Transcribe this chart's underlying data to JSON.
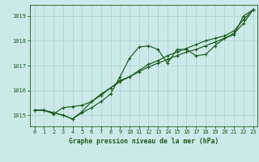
{
  "title": "Graphe pression niveau de la mer (hPa)",
  "bg_color": "#cce9e9",
  "grid_color": "#aad4d4",
  "line_color": "#1a5c1a",
  "marker_color": "#1a5c1a",
  "xlim": [
    -0.5,
    23.5
  ],
  "ylim": [
    1014.55,
    1019.45
  ],
  "yticks": [
    1015,
    1016,
    1017,
    1018,
    1019
  ],
  "xticks": [
    0,
    1,
    2,
    3,
    4,
    5,
    6,
    7,
    8,
    9,
    10,
    11,
    12,
    13,
    14,
    15,
    16,
    17,
    18,
    19,
    20,
    21,
    22,
    23
  ],
  "series1_x": [
    0,
    1,
    2,
    3,
    4,
    5,
    6,
    7,
    8,
    9,
    10,
    11,
    12,
    13,
    14,
    15,
    16,
    17,
    18,
    19,
    20,
    21,
    22,
    23
  ],
  "series1": [
    1015.2,
    1015.2,
    1015.1,
    1015.0,
    1014.85,
    1015.1,
    1015.3,
    1015.55,
    1015.85,
    1016.55,
    1017.3,
    1017.75,
    1017.8,
    1017.65,
    1017.1,
    1017.65,
    1017.65,
    1017.4,
    1017.45,
    1017.8,
    1018.1,
    1018.25,
    1019.0,
    1019.25
  ],
  "series2_x": [
    0,
    1,
    2,
    3,
    4,
    5,
    6,
    7,
    8,
    9,
    10,
    11,
    12,
    13,
    14,
    15,
    16,
    17,
    18,
    19,
    20,
    21,
    22,
    23
  ],
  "series2": [
    1015.2,
    1015.2,
    1015.1,
    1015.0,
    1014.85,
    1015.15,
    1015.55,
    1015.85,
    1016.1,
    1016.4,
    1016.55,
    1016.8,
    1017.05,
    1017.2,
    1017.4,
    1017.55,
    1017.7,
    1017.85,
    1018.0,
    1018.1,
    1018.2,
    1018.4,
    1018.85,
    1019.25
  ],
  "series3_x": [
    0,
    1,
    2,
    3,
    4,
    5,
    6,
    7,
    8,
    9,
    10,
    11,
    12,
    13,
    14,
    15,
    16,
    17,
    18,
    19,
    20,
    21,
    22,
    23
  ],
  "series3": [
    1015.2,
    1015.2,
    1015.05,
    1015.3,
    1015.35,
    1015.4,
    1015.55,
    1015.8,
    1016.1,
    1016.35,
    1016.55,
    1016.75,
    1016.95,
    1017.1,
    1017.25,
    1017.4,
    1017.55,
    1017.65,
    1017.8,
    1017.95,
    1018.1,
    1018.3,
    1018.7,
    1019.25
  ]
}
